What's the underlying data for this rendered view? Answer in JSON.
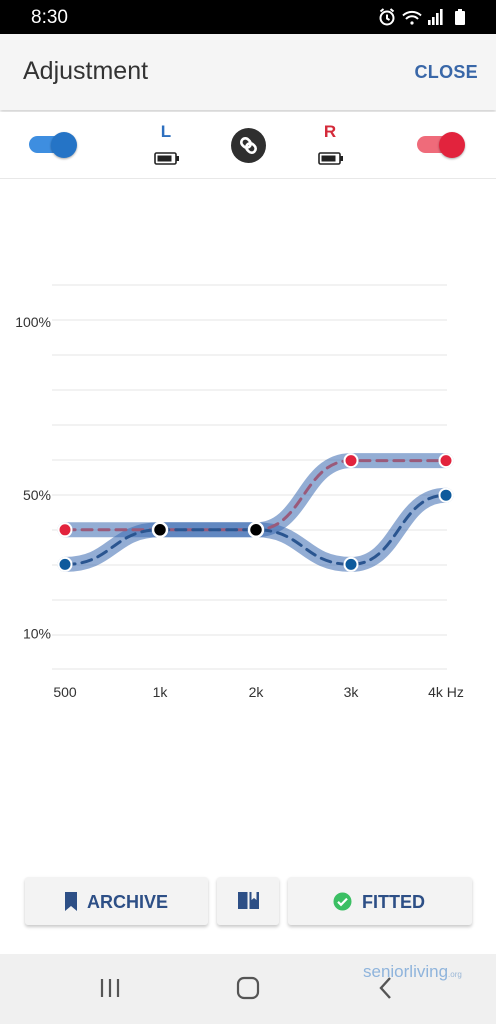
{
  "status_bar": {
    "time": "8:30",
    "icons": [
      "alarm-icon",
      "wifi-icon",
      "signal-icon",
      "battery-icon"
    ]
  },
  "header": {
    "title": "Adjustment",
    "close_label": "CLOSE"
  },
  "ears": {
    "left": {
      "label": "L",
      "enabled": true,
      "color": "#2574c6"
    },
    "right": {
      "label": "R",
      "enabled": true,
      "color": "#e2233d"
    },
    "link_icon": "link-icon"
  },
  "chart": {
    "y_ticks": [
      "100%",
      "50%",
      "10%"
    ],
    "x_ticks": [
      "500",
      "1k",
      "2k",
      "3k",
      "4k Hz"
    ]
  },
  "chart_data": {
    "type": "line",
    "categories": [
      "500",
      "1k",
      "2k",
      "3k",
      "4k Hz"
    ],
    "series": [
      {
        "values": [
          40,
          40,
          40,
          60,
          60
        ],
        "color": "#e2233d"
      },
      {
        "values": [
          30,
          40,
          40,
          30,
          50
        ],
        "color": "#0d5a9c"
      }
    ],
    "y_tick_values": [
      100,
      50,
      10
    ],
    "grid": true
  },
  "actions": {
    "archive_label": "ARCHIVE",
    "fitted_label": "FITTED"
  },
  "watermark": {
    "main": "seniorliving",
    "suffix": ".org"
  }
}
